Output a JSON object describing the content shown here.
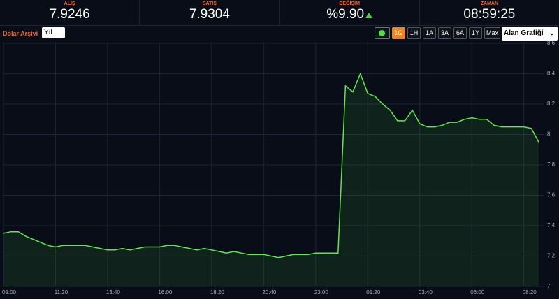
{
  "header": {
    "columns": [
      {
        "label": "ALIŞ",
        "value": "7.9246"
      },
      {
        "label": "SATIŞ",
        "value": "7.9304"
      },
      {
        "label": "DEĞİŞİM",
        "value": "%9.90"
      },
      {
        "label": "ZAMAN",
        "value": "08:59:25"
      }
    ]
  },
  "toolbar": {
    "label": "Dolar Arşivi",
    "input": "Yıl",
    "buttons": [
      "1G",
      "1H",
      "1A",
      "3A",
      "6A",
      "1Y",
      "Max"
    ],
    "select": "Alan Grafiği"
  },
  "chart_data": {
    "type": "area",
    "color": "#5fe84a",
    "grid": true,
    "categories": [
      "09:00",
      null,
      null,
      null,
      null,
      null,
      null,
      "11:20",
      null,
      null,
      null,
      null,
      null,
      null,
      "13:40",
      null,
      null,
      null,
      null,
      null,
      null,
      "16:00",
      null,
      null,
      null,
      null,
      null,
      null,
      "18:20",
      null,
      null,
      null,
      null,
      null,
      null,
      "20:40",
      null,
      null,
      null,
      null,
      null,
      null,
      "23:00",
      null,
      null,
      null,
      null,
      null,
      null,
      "01:20",
      null,
      null,
      null,
      null,
      null,
      null,
      "03:40",
      null,
      null,
      null,
      null,
      null,
      null,
      "06:00",
      null,
      null,
      null,
      null,
      null,
      null,
      "08:20",
      null,
      null
    ],
    "values": [
      7.35,
      7.36,
      7.36,
      7.33,
      7.31,
      7.29,
      7.27,
      7.26,
      7.27,
      7.27,
      7.27,
      7.27,
      7.26,
      7.25,
      7.24,
      7.24,
      7.25,
      7.24,
      7.25,
      7.26,
      7.26,
      7.26,
      7.27,
      7.27,
      7.26,
      7.25,
      7.24,
      7.25,
      7.24,
      7.23,
      7.22,
      7.23,
      7.22,
      7.21,
      7.21,
      7.21,
      7.2,
      7.19,
      7.2,
      7.21,
      7.21,
      7.21,
      7.22,
      7.22,
      7.22,
      7.22,
      8.32,
      8.28,
      8.4,
      8.27,
      8.25,
      8.2,
      8.16,
      8.09,
      8.09,
      8.16,
      8.07,
      8.05,
      8.05,
      8.06,
      8.08,
      8.08,
      8.1,
      8.11,
      8.1,
      8.1,
      8.06,
      8.05,
      8.05,
      8.05,
      8.05,
      8.04,
      7.95
    ],
    "ylim": [
      7,
      8.6
    ],
    "yticks": [
      7,
      7.2,
      7.4,
      7.6,
      7.8,
      8,
      8.2,
      8.4,
      8.6
    ]
  }
}
